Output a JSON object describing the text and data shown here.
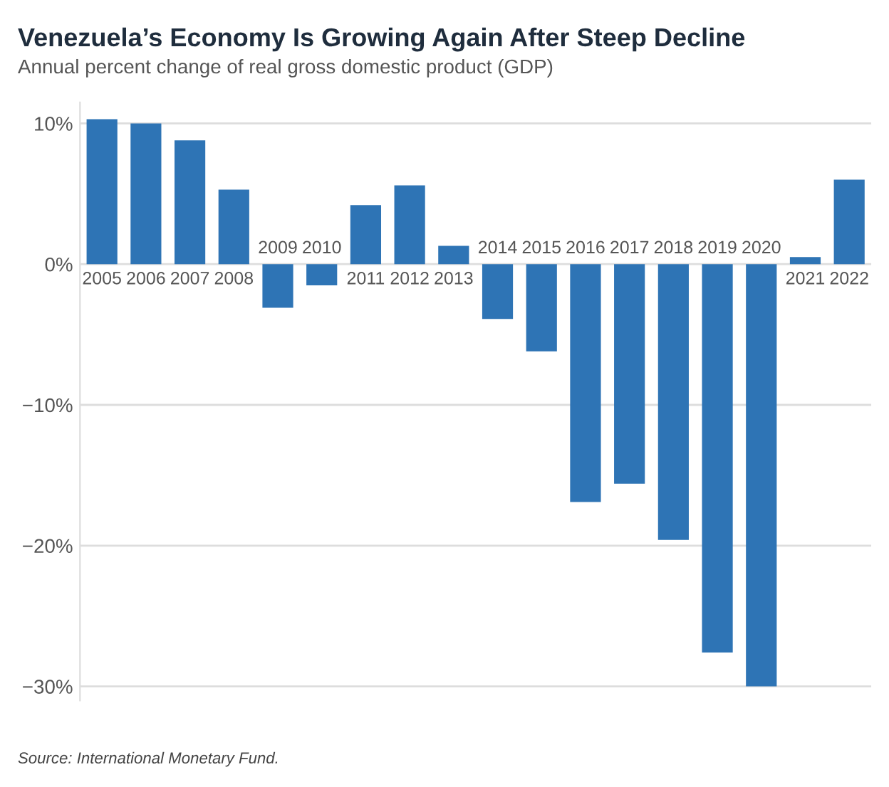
{
  "chart_data": {
    "type": "bar",
    "title": "Venezuela’s Economy Is Growing Again After Steep Decline",
    "subtitle": "Annual percent change of real gross domestic product (GDP)",
    "categories": [
      "2005",
      "2006",
      "2007",
      "2008",
      "2009",
      "2010",
      "2011",
      "2012",
      "2013",
      "2014",
      "2015",
      "2016",
      "2017",
      "2018",
      "2019",
      "2020",
      "2021",
      "2022"
    ],
    "values": [
      10.3,
      10.0,
      8.8,
      5.3,
      -3.1,
      -1.5,
      4.2,
      5.6,
      1.3,
      -3.9,
      -6.2,
      -16.9,
      -15.6,
      -19.6,
      -27.6,
      -30.0,
      0.5,
      6.0
    ],
    "color": "#2e74b5",
    "ylim": [
      -31,
      11.5
    ],
    "yticks": [
      {
        "value": 10,
        "label": "10%"
      },
      {
        "value": 0,
        "label": "0%"
      },
      {
        "value": -10,
        "label": "−10%"
      },
      {
        "value": -20,
        "label": "−20%"
      },
      {
        "value": -30,
        "label": "−30%"
      }
    ],
    "grid": "y",
    "annotations": [
      "Source: International Monetary Fund."
    ]
  }
}
